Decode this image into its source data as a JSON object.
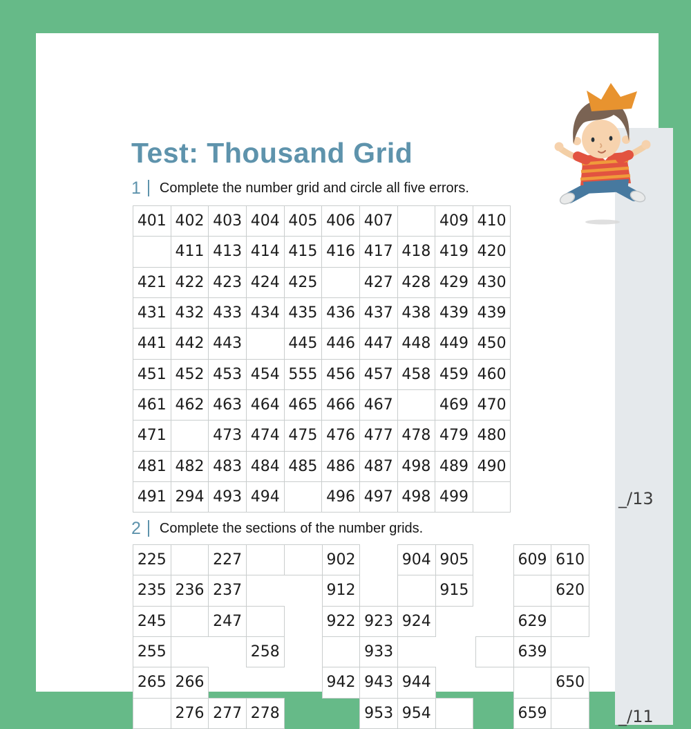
{
  "page": {
    "title": "Test: Thousand Grid",
    "colors": {
      "frame_green": "#66ba88",
      "accent_blue": "#5e93ac",
      "panel_gray": "#e5e9ec",
      "grid_border": "#c9cdcd"
    }
  },
  "questions": [
    {
      "number": "1",
      "instruction": "Complete the number grid and circle all five errors.",
      "score": "_/13"
    },
    {
      "number": "2",
      "instruction": "Complete the sections of the number grids.",
      "score": "_/11"
    }
  ],
  "icons": {
    "boy_illustration": "jumping-boy-with-crown"
  },
  "grids": {
    "main": [
      [
        "401",
        "402",
        "403",
        "404",
        "405",
        "406",
        "407",
        "",
        "409",
        "410"
      ],
      [
        "",
        "411",
        "413",
        "414",
        "415",
        "416",
        "417",
        "418",
        "419",
        "420"
      ],
      [
        "421",
        "422",
        "423",
        "424",
        "425",
        "",
        "427",
        "428",
        "429",
        "430"
      ],
      [
        "431",
        "432",
        "433",
        "434",
        "435",
        "436",
        "437",
        "438",
        "439",
        "439"
      ],
      [
        "441",
        "442",
        "443",
        "",
        "445",
        "446",
        "447",
        "448",
        "449",
        "450"
      ],
      [
        "451",
        "452",
        "453",
        "454",
        "555",
        "456",
        "457",
        "458",
        "459",
        "460"
      ],
      [
        "461",
        "462",
        "463",
        "464",
        "465",
        "466",
        "467",
        "",
        "469",
        "470"
      ],
      [
        "471",
        "",
        "473",
        "474",
        "475",
        "476",
        "477",
        "478",
        "479",
        "480"
      ],
      [
        "481",
        "482",
        "483",
        "484",
        "485",
        "486",
        "487",
        "498",
        "489",
        "490"
      ],
      [
        "491",
        "294",
        "493",
        "494",
        "",
        "496",
        "497",
        "498",
        "499",
        ""
      ]
    ],
    "section_a": [
      [
        "225",
        "",
        "227",
        ""
      ],
      [
        "235",
        "236",
        "237",
        null
      ],
      [
        "245",
        "",
        "247",
        ""
      ],
      [
        "255",
        null,
        null,
        "258"
      ],
      [
        "265",
        "266",
        null,
        null
      ],
      [
        "",
        "276",
        "277",
        "278"
      ]
    ],
    "section_b": [
      [
        "",
        "902",
        null,
        "904",
        "905"
      ],
      [
        null,
        "912",
        null,
        "",
        "915"
      ],
      [
        null,
        "922",
        "923",
        "924",
        null
      ],
      [
        null,
        "",
        "933",
        null,
        null
      ],
      [
        null,
        "942",
        "943",
        "944",
        null
      ],
      [
        null,
        null,
        "953",
        "954",
        ""
      ]
    ],
    "section_c": [
      [
        null,
        "609",
        "610"
      ],
      [
        null,
        "",
        "620"
      ],
      [
        null,
        "629",
        ""
      ],
      [
        "",
        "639",
        null
      ],
      [
        null,
        "",
        "650"
      ],
      [
        null,
        "659",
        ""
      ]
    ]
  }
}
